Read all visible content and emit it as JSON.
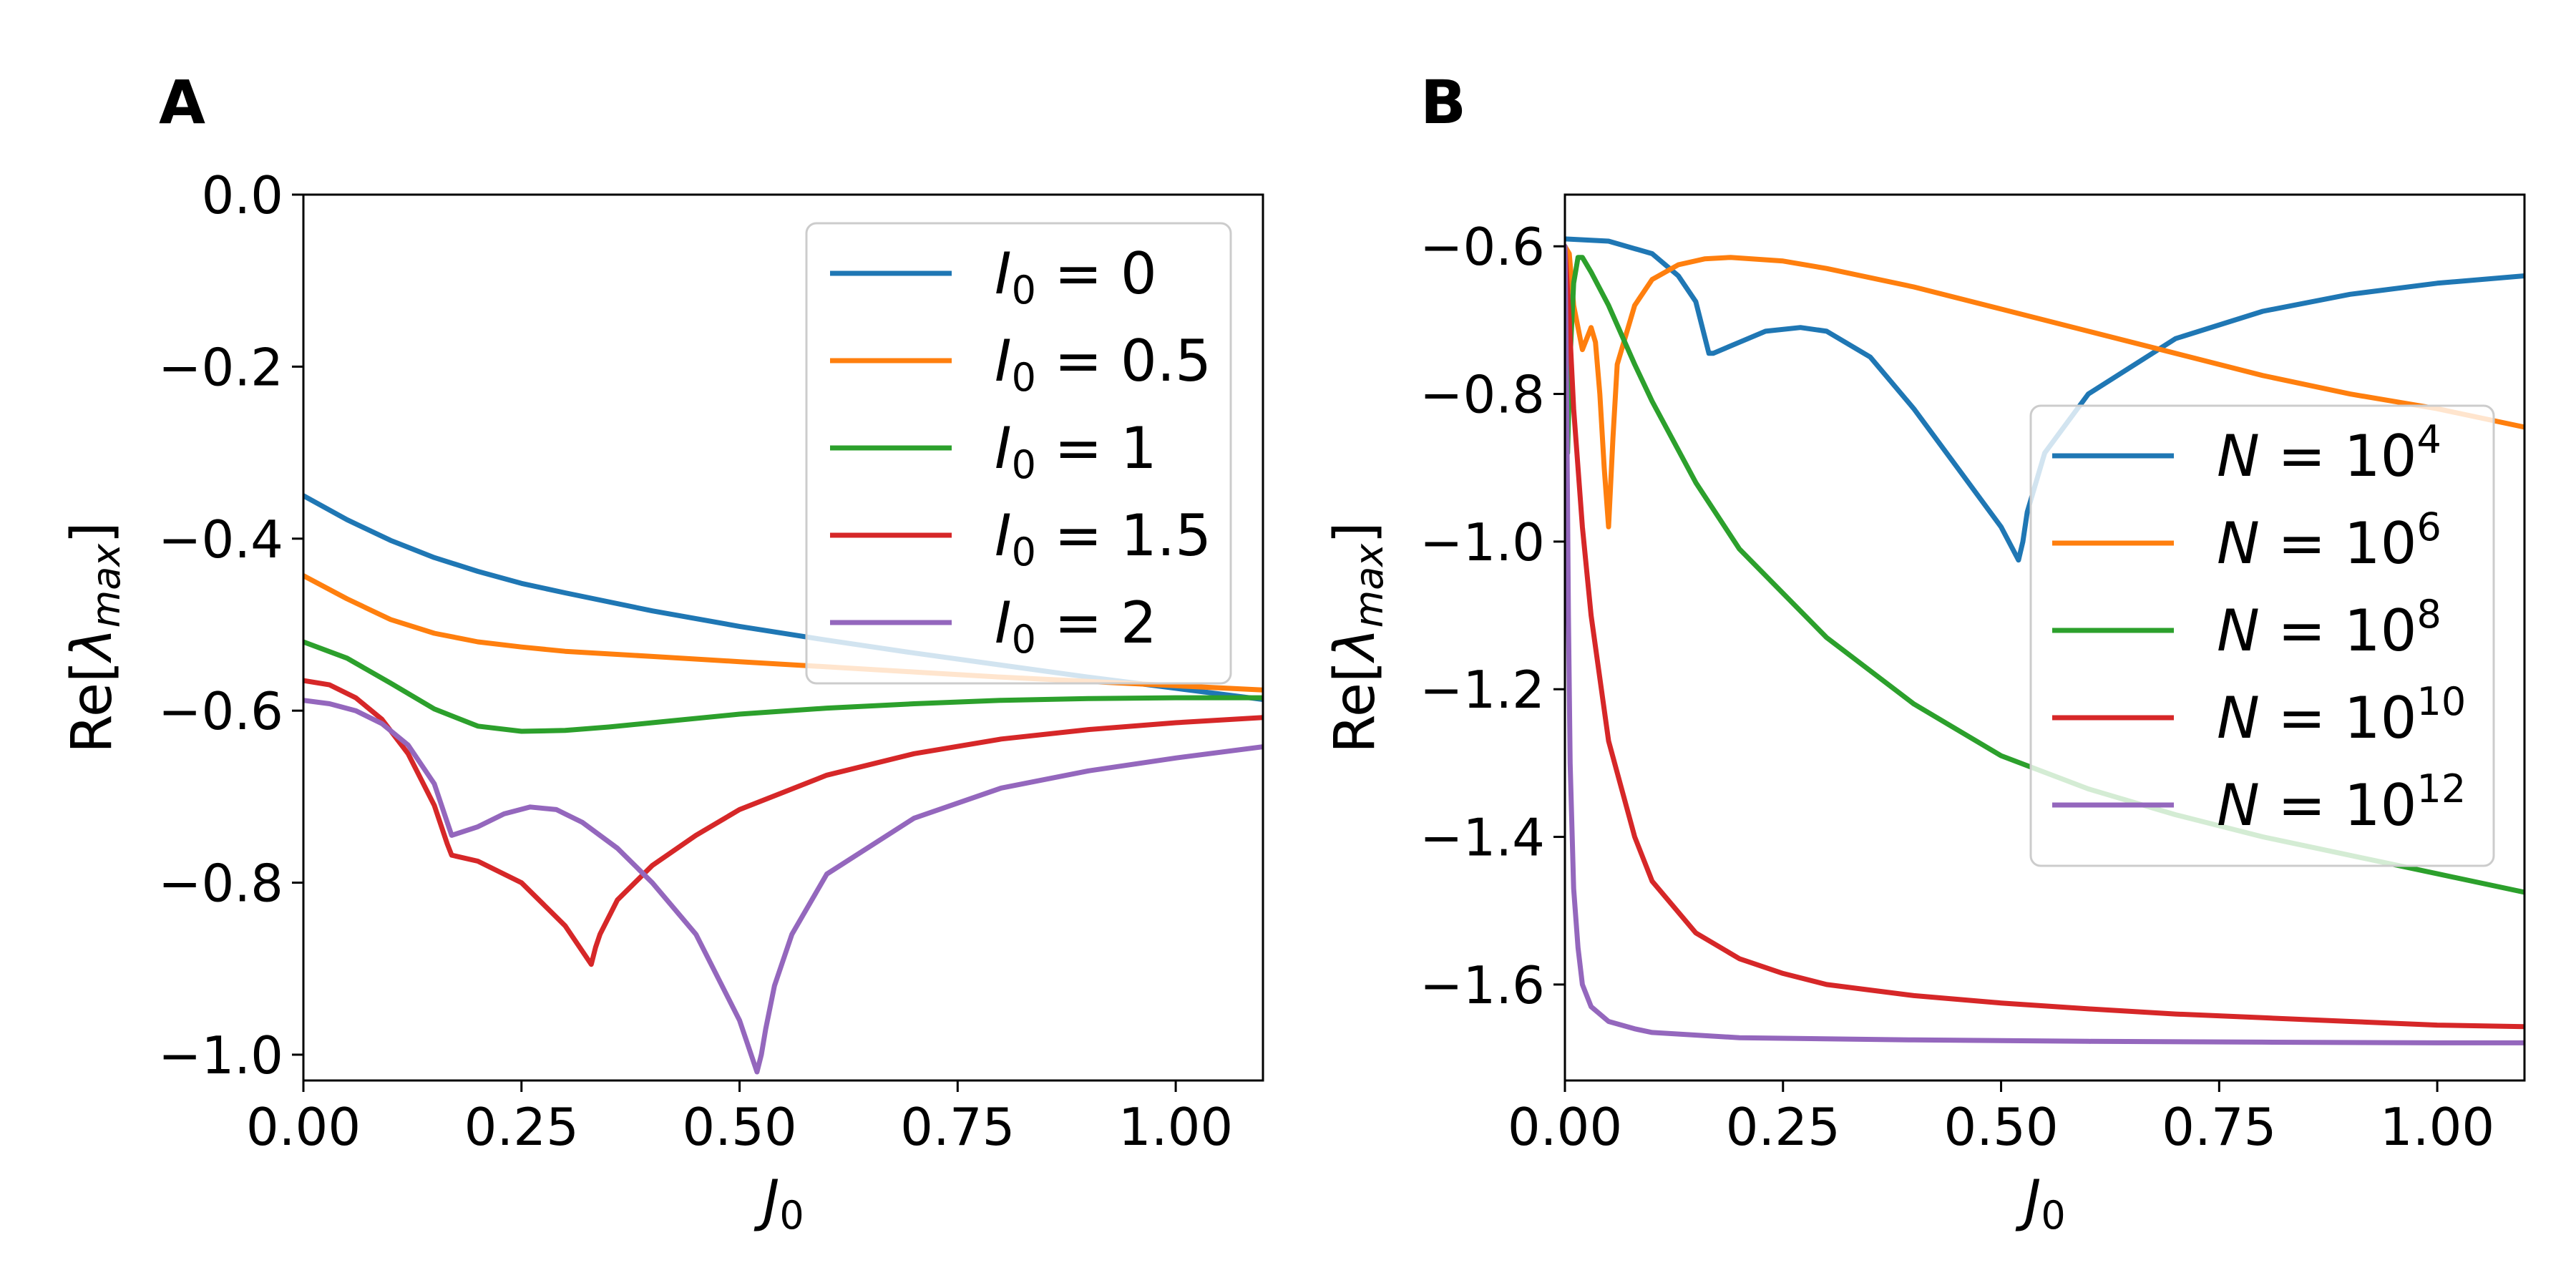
{
  "chart_data": [
    {
      "type": "line",
      "panel_label": "A",
      "xlabel_main": "J",
      "xlabel_sub": "0",
      "ylabel_main": "Re[",
      "ylabel_lambda": "λ",
      "ylabel_sub": "max",
      "ylabel_close": "]",
      "xlim": [
        0,
        1.1
      ],
      "ylim": [
        -1.03,
        0
      ],
      "xticks": [
        0,
        0.25,
        0.5,
        0.75,
        1.0
      ],
      "xtick_labels": [
        "0.00",
        "0.25",
        "0.50",
        "0.75",
        "1.00"
      ],
      "yticks": [
        0,
        -0.2,
        -0.4,
        -0.6,
        -0.8,
        -1.0
      ],
      "ytick_labels": [
        "0.0",
        "−0.2",
        "−0.4",
        "−0.6",
        "−0.8",
        "−1.0"
      ],
      "legend_position": "top-right",
      "series": [
        {
          "name_var": "I",
          "name_sub": "0",
          "name_rest": " = 0",
          "color": "#1f77b4",
          "x": [
            0,
            0.05,
            0.1,
            0.15,
            0.2,
            0.25,
            0.3,
            0.4,
            0.5,
            0.6,
            0.7,
            0.8,
            0.9,
            1.0,
            1.1
          ],
          "y": [
            -0.35,
            -0.378,
            -0.402,
            -0.422,
            -0.438,
            -0.452,
            -0.463,
            -0.484,
            -0.502,
            -0.518,
            -0.533,
            -0.547,
            -0.561,
            -0.574,
            -0.587
          ]
        },
        {
          "name_var": "I",
          "name_sub": "0",
          "name_rest": " = 0.5",
          "color": "#ff7f0e",
          "x": [
            0,
            0.05,
            0.1,
            0.15,
            0.2,
            0.25,
            0.3,
            0.4,
            0.5,
            0.6,
            0.7,
            0.8,
            0.9,
            1.0,
            1.1
          ],
          "y": [
            -0.443,
            -0.47,
            -0.494,
            -0.51,
            -0.52,
            -0.526,
            -0.531,
            -0.537,
            -0.543,
            -0.549,
            -0.555,
            -0.561,
            -0.566,
            -0.571,
            -0.576
          ]
        },
        {
          "name_var": "I",
          "name_sub": "0",
          "name_rest": " = 1",
          "color": "#2ca02c",
          "x": [
            0,
            0.05,
            0.1,
            0.15,
            0.2,
            0.25,
            0.3,
            0.35,
            0.4,
            0.5,
            0.6,
            0.7,
            0.8,
            0.9,
            1.0,
            1.1
          ],
          "y": [
            -0.52,
            -0.539,
            -0.568,
            -0.598,
            -0.618,
            -0.624,
            -0.623,
            -0.619,
            -0.614,
            -0.604,
            -0.597,
            -0.592,
            -0.588,
            -0.586,
            -0.585,
            -0.585
          ]
        },
        {
          "name_var": "I",
          "name_sub": "0",
          "name_rest": " = 1.5",
          "color": "#d62728",
          "x": [
            0,
            0.03,
            0.06,
            0.09,
            0.12,
            0.15,
            0.165,
            0.17,
            0.2,
            0.25,
            0.3,
            0.33,
            0.335,
            0.34,
            0.36,
            0.4,
            0.45,
            0.5,
            0.6,
            0.7,
            0.8,
            0.9,
            1.0,
            1.1
          ],
          "y": [
            -0.565,
            -0.57,
            -0.585,
            -0.61,
            -0.65,
            -0.71,
            -0.755,
            -0.768,
            -0.775,
            -0.8,
            -0.85,
            -0.895,
            -0.875,
            -0.86,
            -0.82,
            -0.78,
            -0.745,
            -0.715,
            -0.675,
            -0.65,
            -0.633,
            -0.622,
            -0.614,
            -0.608
          ]
        },
        {
          "name_var": "I",
          "name_sub": "0",
          "name_rest": " = 2",
          "color": "#9467bd",
          "x": [
            0,
            0.03,
            0.06,
            0.09,
            0.12,
            0.15,
            0.165,
            0.17,
            0.2,
            0.23,
            0.26,
            0.29,
            0.32,
            0.36,
            0.4,
            0.45,
            0.5,
            0.52,
            0.525,
            0.53,
            0.54,
            0.56,
            0.6,
            0.7,
            0.8,
            0.9,
            1.0,
            1.1
          ],
          "y": [
            -0.588,
            -0.592,
            -0.6,
            -0.615,
            -0.64,
            -0.685,
            -0.73,
            -0.745,
            -0.735,
            -0.72,
            -0.712,
            -0.715,
            -0.73,
            -0.76,
            -0.8,
            -0.86,
            -0.96,
            -1.02,
            -1.0,
            -0.97,
            -0.92,
            -0.86,
            -0.79,
            -0.725,
            -0.69,
            -0.67,
            -0.655,
            -0.642
          ]
        }
      ]
    },
    {
      "type": "line",
      "panel_label": "B",
      "xlabel_main": "J",
      "xlabel_sub": "0",
      "ylabel_main": "Re[",
      "ylabel_lambda": "λ",
      "ylabel_sub": "max",
      "ylabel_close": "]",
      "xlim": [
        0,
        1.1
      ],
      "ylim": [
        -1.73,
        -0.53
      ],
      "xticks": [
        0,
        0.25,
        0.5,
        0.75,
        1.0
      ],
      "xtick_labels": [
        "0.00",
        "0.25",
        "0.50",
        "0.75",
        "1.00"
      ],
      "yticks": [
        -0.6,
        -0.8,
        -1.0,
        -1.2,
        -1.4,
        -1.6
      ],
      "ytick_labels": [
        "−0.6",
        "−0.8",
        "−1.0",
        "−1.2",
        "−1.4",
        "−1.6"
      ],
      "legend_position": "center-right",
      "series": [
        {
          "name_var": "N",
          "name_base": " = 10",
          "name_exp": "4",
          "color": "#1f77b4",
          "x": [
            0,
            0.05,
            0.1,
            0.13,
            0.15,
            0.165,
            0.17,
            0.2,
            0.23,
            0.27,
            0.3,
            0.35,
            0.4,
            0.45,
            0.5,
            0.52,
            0.525,
            0.53,
            0.55,
            0.6,
            0.7,
            0.8,
            0.9,
            1.0,
            1.1
          ],
          "y": [
            -0.59,
            -0.593,
            -0.61,
            -0.64,
            -0.675,
            -0.745,
            -0.745,
            -0.73,
            -0.715,
            -0.71,
            -0.715,
            -0.75,
            -0.82,
            -0.9,
            -0.98,
            -1.025,
            -1.0,
            -0.96,
            -0.88,
            -0.8,
            -0.725,
            -0.688,
            -0.665,
            -0.65,
            -0.64
          ]
        },
        {
          "name_var": "N",
          "name_base": " = 10",
          "name_exp": "6",
          "color": "#ff7f0e",
          "x": [
            0,
            0.005,
            0.01,
            0.02,
            0.03,
            0.035,
            0.04,
            0.045,
            0.05,
            0.055,
            0.06,
            0.08,
            0.1,
            0.13,
            0.16,
            0.19,
            0.25,
            0.3,
            0.4,
            0.5,
            0.6,
            0.7,
            0.8,
            0.9,
            1.0,
            1.1
          ],
          "y": [
            -0.6,
            -0.61,
            -0.68,
            -0.74,
            -0.71,
            -0.73,
            -0.8,
            -0.9,
            -0.98,
            -0.86,
            -0.76,
            -0.68,
            -0.645,
            -0.625,
            -0.617,
            -0.615,
            -0.62,
            -0.63,
            -0.655,
            -0.685,
            -0.715,
            -0.745,
            -0.775,
            -0.8,
            -0.82,
            -0.845
          ]
        },
        {
          "name_var": "N",
          "name_base": " = 10",
          "name_exp": "8",
          "color": "#2ca02c",
          "x": [
            0,
            0.003,
            0.006,
            0.01,
            0.015,
            0.02,
            0.03,
            0.05,
            0.08,
            0.1,
            0.15,
            0.2,
            0.3,
            0.4,
            0.5,
            0.6,
            0.7,
            0.8,
            0.9,
            1.0,
            1.1
          ],
          "y": [
            -0.6,
            -0.88,
            -0.75,
            -0.65,
            -0.615,
            -0.615,
            -0.635,
            -0.68,
            -0.76,
            -0.81,
            -0.92,
            -1.01,
            -1.13,
            -1.22,
            -1.29,
            -1.335,
            -1.37,
            -1.4,
            -1.425,
            -1.45,
            -1.475
          ]
        },
        {
          "name_var": "N",
          "name_base": " = 10",
          "name_exp": "10",
          "color": "#d62728",
          "x": [
            0,
            0.005,
            0.01,
            0.02,
            0.03,
            0.05,
            0.08,
            0.1,
            0.15,
            0.2,
            0.25,
            0.3,
            0.4,
            0.5,
            0.6,
            0.7,
            0.8,
            0.9,
            1.0,
            1.1
          ],
          "y": [
            -0.6,
            -0.7,
            -0.82,
            -0.98,
            -1.1,
            -1.27,
            -1.4,
            -1.46,
            -1.53,
            -1.565,
            -1.585,
            -1.6,
            -1.615,
            -1.625,
            -1.633,
            -1.64,
            -1.645,
            -1.65,
            -1.655,
            -1.657
          ]
        },
        {
          "name_var": "N",
          "name_base": " = 10",
          "name_exp": "12",
          "color": "#9467bd",
          "x": [
            0,
            0.002,
            0.004,
            0.006,
            0.01,
            0.015,
            0.02,
            0.03,
            0.05,
            0.08,
            0.1,
            0.2,
            0.4,
            0.6,
            0.8,
            1.0,
            1.1
          ],
          "y": [
            -0.6,
            -0.8,
            -1.1,
            -1.3,
            -1.47,
            -1.55,
            -1.6,
            -1.63,
            -1.65,
            -1.66,
            -1.665,
            -1.672,
            -1.675,
            -1.677,
            -1.678,
            -1.679,
            -1.679
          ]
        }
      ]
    }
  ]
}
